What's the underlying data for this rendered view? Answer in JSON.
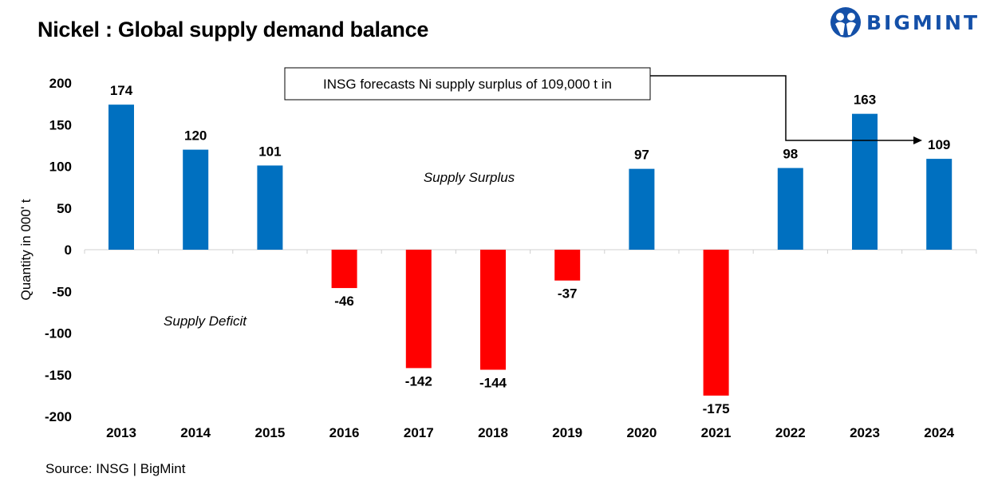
{
  "title": "Nickel : Global supply demand balance",
  "logo": {
    "text": "BIGMINT",
    "color": "#1450a8"
  },
  "source": "Source: INSG | BigMint",
  "chart_data": {
    "type": "bar",
    "categories": [
      "2013",
      "2014",
      "2015",
      "2016",
      "2017",
      "2018",
      "2019",
      "2020",
      "2021",
      "2022",
      "2023",
      "2024"
    ],
    "values": [
      174,
      120,
      101,
      -46,
      -142,
      -144,
      -37,
      97,
      -175,
      98,
      163,
      109
    ],
    "ylabel": "Quantity in 000' t",
    "xlabel": "",
    "ylim": [
      -200,
      200
    ],
    "yticks": [
      200,
      150,
      100,
      50,
      0,
      -50,
      -100,
      -150,
      -200
    ],
    "grid": false,
    "colors": {
      "positive": "#0070c0",
      "negative": "#ff0000"
    },
    "annotations": {
      "surplus": "Supply Surplus",
      "deficit": "Supply Deficit",
      "callout": "INSG forecasts Ni  supply surplus of 109,000 t in"
    }
  }
}
